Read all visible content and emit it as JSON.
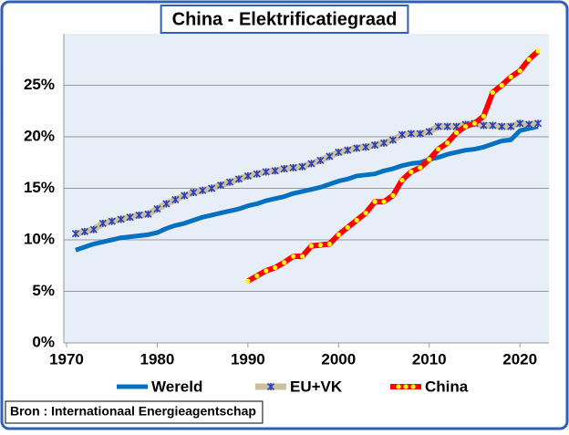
{
  "chart_data": {
    "type": "line",
    "title": "China - Elektrificatiegraad",
    "source": "Bron : Internationaal Energieagentschap",
    "x": [
      1971,
      1972,
      1973,
      1974,
      1975,
      1976,
      1977,
      1978,
      1979,
      1980,
      1981,
      1982,
      1983,
      1984,
      1985,
      1986,
      1987,
      1988,
      1989,
      1990,
      1991,
      1992,
      1993,
      1994,
      1995,
      1996,
      1997,
      1998,
      1999,
      2000,
      2001,
      2002,
      2003,
      2004,
      2005,
      2006,
      2007,
      2008,
      2009,
      2010,
      2011,
      2012,
      2013,
      2014,
      2015,
      2016,
      2017,
      2018,
      2019,
      2020,
      2021,
      2022
    ],
    "series": [
      {
        "name": "Wereld",
        "color": "#0070c0",
        "values": [
          9.0,
          9.3,
          9.6,
          9.8,
          10.0,
          10.2,
          10.3,
          10.4,
          10.5,
          10.7,
          11.1,
          11.4,
          11.6,
          11.9,
          12.2,
          12.4,
          12.6,
          12.8,
          13.0,
          13.3,
          13.5,
          13.8,
          14.0,
          14.2,
          14.5,
          14.7,
          14.9,
          15.1,
          15.4,
          15.7,
          15.9,
          16.2,
          16.3,
          16.4,
          16.7,
          16.9,
          17.2,
          17.4,
          17.5,
          17.8,
          18.0,
          18.3,
          18.5,
          18.7,
          18.8,
          19.0,
          19.3,
          19.6,
          19.7,
          20.6,
          20.8,
          21.0
        ]
      },
      {
        "name": "EU+VK",
        "color": "#c9c19b",
        "marker_color": "#2e3fb8",
        "values": [
          10.6,
          10.8,
          11.0,
          11.6,
          11.8,
          12.0,
          12.2,
          12.4,
          12.5,
          13.0,
          13.5,
          13.9,
          14.3,
          14.6,
          14.8,
          15.0,
          15.3,
          15.6,
          15.9,
          16.2,
          16.4,
          16.6,
          16.7,
          16.9,
          17.0,
          17.1,
          17.4,
          17.7,
          18.1,
          18.5,
          18.7,
          18.9,
          19.0,
          19.2,
          19.4,
          19.7,
          20.2,
          20.3,
          20.3,
          20.5,
          21.0,
          21.0,
          21.0,
          21.2,
          21.3,
          21.1,
          21.1,
          21.0,
          21.0,
          21.3,
          21.2,
          21.3
        ]
      },
      {
        "name": "China",
        "color": "#ff0000",
        "marker_color": "#ffff00",
        "values": [
          null,
          null,
          null,
          null,
          null,
          null,
          null,
          null,
          null,
          null,
          null,
          null,
          null,
          null,
          null,
          null,
          null,
          null,
          null,
          6.0,
          6.5,
          7.0,
          7.3,
          7.8,
          8.4,
          8.4,
          9.4,
          9.5,
          9.6,
          10.5,
          11.2,
          11.9,
          12.6,
          13.7,
          13.7,
          14.3,
          15.8,
          16.6,
          17.0,
          17.8,
          18.8,
          19.4,
          20.4,
          21.0,
          21.3,
          22.0,
          24.3,
          25.0,
          25.8,
          26.4,
          27.5,
          28.3
        ]
      }
    ],
    "xlim": [
      1969.7,
      2023.2
    ],
    "xticks": [
      1970,
      1980,
      1990,
      2000,
      2010,
      2020
    ],
    "ylim": [
      0,
      30
    ],
    "yticks": [
      {
        "value": 0,
        "label": "0%"
      },
      {
        "value": 5,
        "label": "5%"
      },
      {
        "value": 10,
        "label": "10%"
      },
      {
        "value": 15,
        "label": "15%"
      },
      {
        "value": 20,
        "label": "20%"
      },
      {
        "value": 25,
        "label": "25%"
      }
    ],
    "grid": true
  }
}
